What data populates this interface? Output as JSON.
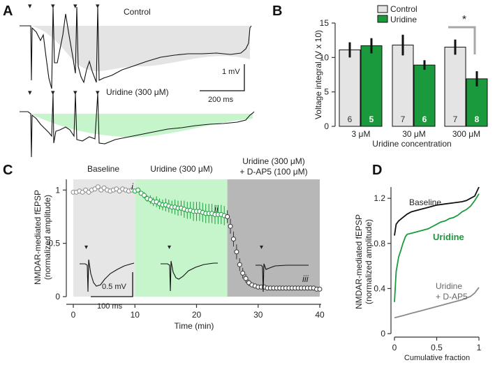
{
  "figure": {
    "panels": {
      "A": "A",
      "B": "B",
      "C": "C",
      "D": "D"
    },
    "colors": {
      "control_fill": "#e4e4e4",
      "uridine_green": "#1a9a3c",
      "uridine_fill": "#c6f5cc",
      "dap5_fill": "#b7b7b7",
      "baseline_fill": "#e6e6e6",
      "trace": "#111111",
      "gray_line": "#8a8a8a"
    }
  },
  "panelA": {
    "control_label": "Control",
    "uridine_label": "Uridine (300 μM)",
    "scale_mv": "1 mV",
    "scale_ms": "200 ms",
    "stim_markers": "▾"
  },
  "panelC": {
    "period_labels": {
      "baseline": "Baseline",
      "uridine": "Uridine (300 μM)",
      "combo_line1": "Uridine (300 μM)",
      "combo_line2": "+ D-AP5 (100 μM)"
    },
    "trace_labels": {
      "i": "i",
      "ii": "ii",
      "iii": "iii"
    },
    "scale_mv": "0.5 mV",
    "scale_ms": "100 ms"
  },
  "chart_data": [
    {
      "panel": "B",
      "type": "bar",
      "ylabel": "Voltage integral (V x 10)",
      "xlabel": "Uridine concentration",
      "categories": [
        "3 μM",
        "30 μM",
        "300 μM"
      ],
      "ylim": [
        0,
        15
      ],
      "yticks": [
        0,
        5,
        10,
        15
      ],
      "legend": [
        "Control",
        "Uridine"
      ],
      "legend_position": "top",
      "series": [
        {
          "name": "Control",
          "values": [
            11.1,
            11.8,
            11.5
          ],
          "errors": [
            1.1,
            1.5,
            1.1
          ],
          "n": [
            "6",
            "7",
            "7"
          ]
        },
        {
          "name": "Uridine",
          "values": [
            11.7,
            8.9,
            6.9
          ],
          "errors": [
            1.1,
            0.7,
            1.1
          ],
          "n": [
            "5",
            "6",
            "8"
          ]
        }
      ],
      "significance": "*"
    },
    {
      "panel": "C",
      "type": "scatter",
      "xlabel": "Time (min)",
      "ylabel_line1": "NMDAR-mediated fEPSP",
      "ylabel_line2": "(normalized amplitude)",
      "xlim": [
        0,
        40
      ],
      "ylim": [
        0,
        1.1
      ],
      "xticks": [
        0,
        10,
        20,
        30,
        40
      ],
      "yticks": [
        0,
        0.5,
        1
      ],
      "periods": [
        {
          "name": "Baseline",
          "start": 0,
          "end": 10
        },
        {
          "name": "Uridine (300 μM)",
          "start": 10,
          "end": 25
        },
        {
          "name": "Uridine (300 μM) + D-AP5 (100 μM)",
          "start": 25,
          "end": 40
        }
      ],
      "x": [
        0,
        0.5,
        1,
        1.5,
        2,
        2.5,
        3,
        3.5,
        4,
        4.5,
        5,
        5.5,
        6,
        6.5,
        7,
        7.5,
        8,
        8.5,
        9,
        9.5,
        10,
        10.5,
        11,
        11.5,
        12,
        12.5,
        13,
        13.5,
        14,
        14.5,
        15,
        15.5,
        16,
        16.5,
        17,
        17.5,
        18,
        18.5,
        19,
        19.5,
        20,
        20.5,
        21,
        21.5,
        22,
        22.5,
        23,
        23.5,
        24,
        24.5,
        25,
        25.5,
        26,
        26.5,
        27,
        27.5,
        28,
        28.5,
        29,
        29.5,
        30,
        30.5,
        31,
        31.5,
        32,
        32.5,
        33,
        33.5,
        34,
        34.5,
        35,
        35.5,
        36,
        36.5,
        37,
        37.5,
        38,
        38.5,
        39,
        39.5,
        40
      ],
      "y": [
        0.98,
        0.98,
        0.99,
        0.98,
        1.0,
        0.98,
        1.0,
        1.01,
        1.03,
        1.0,
        1.02,
        1.0,
        0.99,
        1.0,
        1.01,
        0.99,
        1.01,
        1.0,
        0.99,
        1.0,
        0.99,
        1.0,
        0.97,
        0.95,
        0.92,
        0.91,
        0.89,
        0.89,
        0.87,
        0.86,
        0.86,
        0.85,
        0.84,
        0.84,
        0.83,
        0.83,
        0.82,
        0.81,
        0.81,
        0.8,
        0.8,
        0.8,
        0.79,
        0.78,
        0.78,
        0.78,
        0.77,
        0.77,
        0.77,
        0.76,
        0.75,
        0.66,
        0.54,
        0.42,
        0.3,
        0.22,
        0.17,
        0.13,
        0.11,
        0.1,
        0.09,
        0.09,
        0.09,
        0.08,
        0.08,
        0.08,
        0.08,
        0.08,
        0.08,
        0.08,
        0.08,
        0.08,
        0.08,
        0.08,
        0.08,
        0.08,
        0.08,
        0.08,
        0.08,
        0.07,
        0.07
      ],
      "err": [
        0.01,
        0.01,
        0.01,
        0.01,
        0.01,
        0.01,
        0.01,
        0.01,
        0.01,
        0.01,
        0.01,
        0.01,
        0.01,
        0.01,
        0.01,
        0.01,
        0.01,
        0.01,
        0.01,
        0.01,
        0.01,
        0.02,
        0.02,
        0.03,
        0.03,
        0.04,
        0.04,
        0.05,
        0.05,
        0.05,
        0.06,
        0.06,
        0.06,
        0.07,
        0.07,
        0.07,
        0.08,
        0.08,
        0.08,
        0.09,
        0.09,
        0.09,
        0.09,
        0.09,
        0.09,
        0.09,
        0.09,
        0.09,
        0.09,
        0.09,
        0.06,
        0.07,
        0.07,
        0.07,
        0.06,
        0.05,
        0.04,
        0.03,
        0.02,
        0.02,
        0.01,
        0.01,
        0.01,
        0.01,
        0.01,
        0.01,
        0.01,
        0.01,
        0.01,
        0.01,
        0.01,
        0.01,
        0.01,
        0.01,
        0.01,
        0.01,
        0.01,
        0.01,
        0.01,
        0.01,
        0.01
      ]
    },
    {
      "panel": "D",
      "type": "line",
      "xlabel": "Cumulative fraction",
      "ylabel_line1": "NMDAR-mediated fEPSP",
      "ylabel_line2": "(normalized amplitude)",
      "xlim": [
        0,
        1
      ],
      "ylim": [
        0,
        1.3
      ],
      "xticks": [
        0,
        0.5,
        1
      ],
      "yticks": [
        0,
        0.4,
        0.8,
        1.2
      ],
      "series": [
        {
          "name": "Baseline",
          "x": [
            0,
            0.02,
            0.05,
            0.1,
            0.15,
            0.2,
            0.3,
            0.4,
            0.5,
            0.6,
            0.7,
            0.8,
            0.85,
            0.9,
            0.95,
            1.0
          ],
          "y": [
            0.87,
            0.97,
            1.0,
            1.03,
            1.06,
            1.08,
            1.1,
            1.12,
            1.14,
            1.15,
            1.16,
            1.17,
            1.18,
            1.2,
            1.22,
            1.3
          ]
        },
        {
          "name": "Uridine",
          "x": [
            0,
            0.02,
            0.05,
            0.08,
            0.1,
            0.13,
            0.15,
            0.2,
            0.3,
            0.4,
            0.45,
            0.5,
            0.55,
            0.6,
            0.65,
            0.7,
            0.75,
            0.8,
            0.85,
            0.9,
            0.95,
            1.0
          ],
          "y": [
            0.28,
            0.55,
            0.68,
            0.75,
            0.8,
            0.86,
            0.88,
            0.89,
            0.91,
            0.93,
            0.95,
            0.97,
            0.99,
            1.0,
            1.02,
            1.03,
            1.05,
            1.08,
            1.1,
            1.13,
            1.18,
            1.24
          ]
        },
        {
          "name": "Uridine + D-AP5",
          "label_line1": "Uridine",
          "label_line2": "+ D-AP5",
          "x": [
            0,
            0.05,
            0.1,
            0.2,
            0.3,
            0.4,
            0.5,
            0.6,
            0.7,
            0.8,
            0.9,
            0.95,
            1.0
          ],
          "y": [
            0.14,
            0.15,
            0.16,
            0.18,
            0.2,
            0.22,
            0.24,
            0.26,
            0.28,
            0.3,
            0.33,
            0.36,
            0.41
          ]
        }
      ]
    }
  ]
}
